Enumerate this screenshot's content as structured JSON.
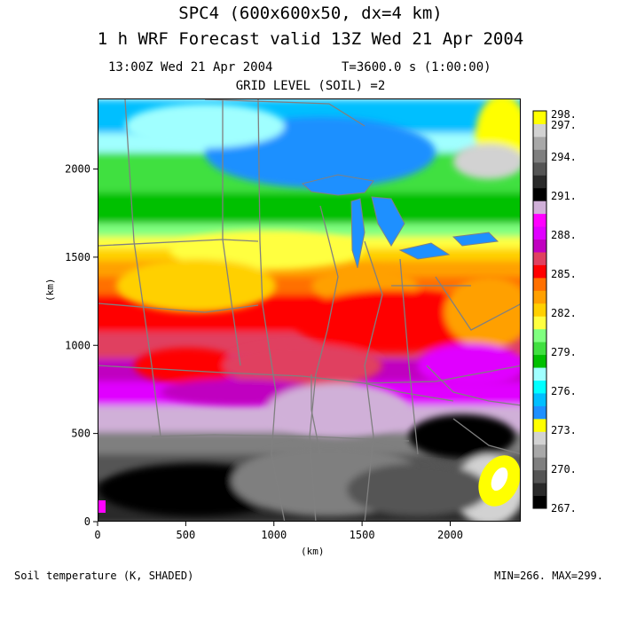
{
  "header": {
    "title_line1": "SPC4 (600x600x50, dx=4 km)",
    "title_line2": "1 h WRF Forecast valid 13Z Wed 21 Apr 2004",
    "valid_time": "13:00Z Wed 21 Apr 2004",
    "forecast_time": "T=3600.0 s (1:00:00)",
    "grid_level": "GRID LEVEL (SOIL) =2"
  },
  "axes": {
    "x_unit": "(km)",
    "y_unit": "(km)",
    "x_ticks": [
      "0",
      "500",
      "1000",
      "1500",
      "2000"
    ],
    "y_ticks": [
      "0",
      "500",
      "1000",
      "1500",
      "2000"
    ]
  },
  "colorbar": {
    "colors": [
      "#000000",
      "#2a2a2a",
      "#555555",
      "#7f7f7f",
      "#a8a8a8",
      "#d2d2d2",
      "#ffff00",
      "#1e90ff",
      "#00bfff",
      "#00ffff",
      "#a0ffff",
      "#00c000",
      "#40e040",
      "#80ff80",
      "#ffff40",
      "#ffd000",
      "#ffa000",
      "#ff7000",
      "#ff0000",
      "#e04060",
      "#c000c0",
      "#e000ff",
      "#ff00ff",
      "#d0b0d8",
      "#000000",
      "#2a2a2a",
      "#555555",
      "#7f7f7f",
      "#a8a8a8",
      "#d2d2d2",
      "#ffff00"
    ],
    "labels": [
      "267.",
      "270.",
      "273.",
      "276.",
      "279.",
      "282.",
      "285.",
      "288.",
      "291.",
      "294.",
      "297.",
      "298."
    ]
  },
  "footer": {
    "field_description": "Soil temperature (K, SHADED)",
    "min_max": "MIN=266. MAX=299."
  },
  "chart_data": {
    "type": "heatmap",
    "field": "Soil temperature",
    "units": "K",
    "x_range_km": [
      0,
      2400
    ],
    "y_range_km": [
      0,
      2400
    ],
    "min": 266,
    "max": 299
  }
}
